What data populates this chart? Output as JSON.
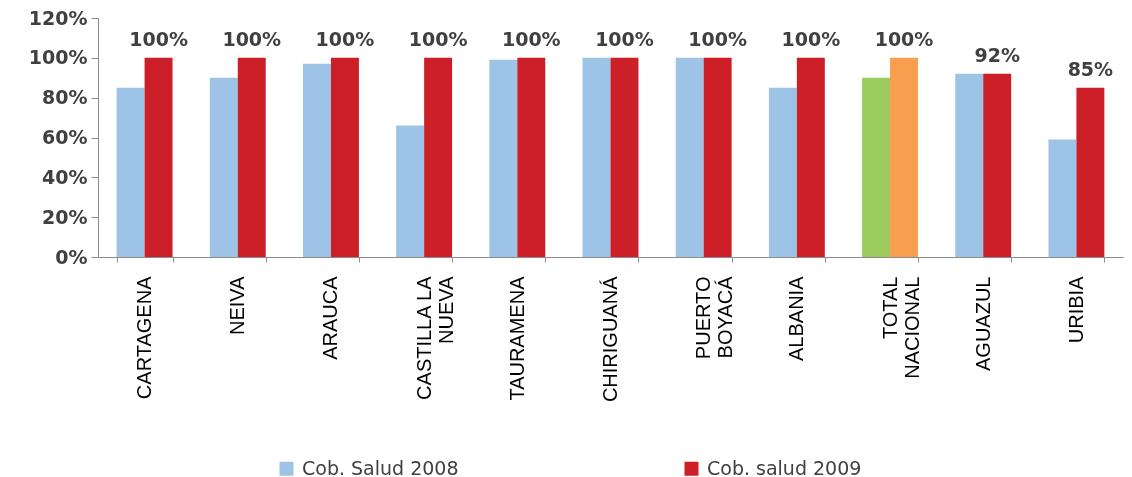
{
  "chart_data": {
    "type": "bar",
    "categories": [
      "CARTAGENA",
      "NEIVA",
      "ARAUCA",
      "CASTILLA LA NUEVA",
      "TAURAMENA",
      "CHIRIGUANÁ",
      "PUERTO BOYACÁ",
      "ALBANIA",
      "TOTAL NACIONAL",
      "AGUAZUL",
      "URIBIA"
    ],
    "ylim": [
      0,
      120
    ],
    "yticks": [
      {
        "value": 0,
        "label": "0%"
      },
      {
        "value": 20,
        "label": "20%"
      },
      {
        "value": 40,
        "label": "40%"
      },
      {
        "value": 60,
        "label": "60%"
      },
      {
        "value": 80,
        "label": "80%"
      },
      {
        "value": 100,
        "label": "100%"
      },
      {
        "value": 120,
        "label": "120%"
      }
    ],
    "legend": "bottom",
    "series": [
      {
        "name": "Cob. Salud 2008",
        "color": "#9dc3e6",
        "values": [
          85,
          90,
          97,
          66,
          99,
          100,
          100,
          85,
          90,
          92,
          59
        ],
        "colors": [
          "#9dc3e6",
          "#9dc3e6",
          "#9dc3e6",
          "#9dc3e6",
          "#9dc3e6",
          "#9dc3e6",
          "#9dc3e6",
          "#9dc3e6",
          "#9bcb5c",
          "#9dc3e6",
          "#9dc3e6"
        ]
      },
      {
        "name": "Cob. salud 2009",
        "color": "#cc1f27",
        "values": [
          100,
          100,
          100,
          100,
          100,
          100,
          100,
          100,
          100,
          92,
          85
        ],
        "colors": [
          "#cc1f27",
          "#cc1f27",
          "#cc1f27",
          "#cc1f27",
          "#cc1f27",
          "#cc1f27",
          "#cc1f27",
          "#cc1f27",
          "#f79f4f",
          "#cc1f27",
          "#cc1f27"
        ],
        "value_labels": [
          "100%",
          "100%",
          "100%",
          "100%",
          "100%",
          "100%",
          "100%",
          "100%",
          "100%",
          "92%",
          "85%"
        ]
      }
    ]
  }
}
